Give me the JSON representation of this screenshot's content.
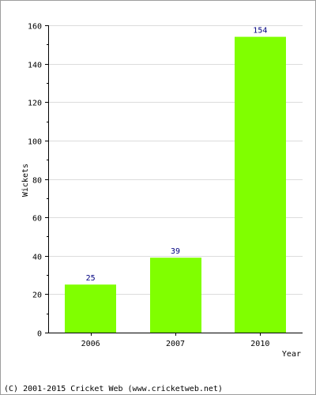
{
  "chart_data": {
    "type": "bar",
    "categories": [
      "2006",
      "2007",
      "2010"
    ],
    "values": [
      25,
      39,
      154
    ],
    "data_labels": [
      "25",
      "39",
      "154"
    ],
    "xlabel": "Year",
    "ylabel": "Wickets",
    "ylim": [
      0,
      160
    ],
    "y_ticks": [
      0,
      20,
      40,
      60,
      80,
      100,
      120,
      140,
      160
    ],
    "y_tick_labels": [
      "0",
      "20",
      "40",
      "60",
      "80",
      "100",
      "120",
      "140",
      "160"
    ],
    "grid": true,
    "colors": {
      "bar": "#80ff00",
      "data_label": "#000080",
      "grid": "#dcdcdc",
      "axis": "#000000"
    }
  },
  "footer": {
    "copyright": "(C) 2001-2015 Cricket Web (www.cricketweb.net)"
  }
}
